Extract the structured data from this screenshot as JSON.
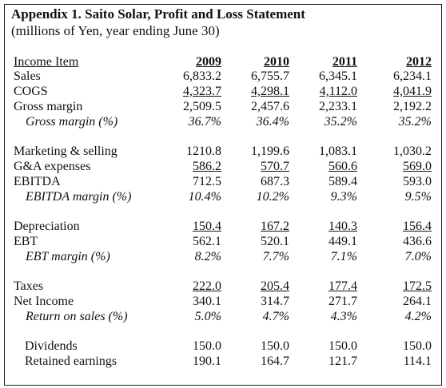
{
  "header": {
    "title": "Appendix 1. Saito Solar, Profit and Loss Statement",
    "subtitle": "(millions of Yen, year ending June 30)"
  },
  "table": {
    "columns": [
      "Income Item",
      "2009",
      "2010",
      "2011",
      "2012"
    ],
    "rows": [
      [
        "Sales",
        "6,833.2",
        "6,755.7",
        "6,345.1",
        "6,234.1"
      ],
      [
        "COGS",
        "4,323.7",
        "4,298.1",
        "4,112.0",
        "4,041.9"
      ],
      [
        "Gross margin",
        "2,509.5",
        "2,457.6",
        "2,233.1",
        "2,192.2"
      ],
      [
        "Gross margin (%)",
        "36.7%",
        "36.4%",
        "35.2%",
        "35.2%"
      ],
      [
        "Marketing & selling",
        "1210.8",
        "1,199.6",
        "1,083.1",
        "1,030.2"
      ],
      [
        "G&A expenses",
        "586.2",
        "570.7",
        "560.6",
        "569.0"
      ],
      [
        "EBITDA",
        "712.5",
        "687.3",
        "589.4",
        "593.0"
      ],
      [
        "EBITDA margin (%)",
        "10.4%",
        "10.2%",
        "9.3%",
        "9.5%"
      ],
      [
        "Depreciation",
        "150.4",
        "167.2",
        "140.3",
        "156.4"
      ],
      [
        "EBT",
        "562.1",
        "520.1",
        "449.1",
        "436.6"
      ],
      [
        "EBT margin (%)",
        "8.2%",
        "7.7%",
        "7.1%",
        "7.0%"
      ],
      [
        "Taxes",
        "222.0",
        "205.4",
        "177.4",
        "172.5"
      ],
      [
        "Net Income",
        "340.1",
        "314.7",
        "271.7",
        "264.1"
      ],
      [
        "Return on sales (%)",
        "5.0%",
        "4.7%",
        "4.3%",
        "4.2%"
      ],
      [
        "Dividends",
        "150.0",
        "150.0",
        "150.0",
        "150.0"
      ],
      [
        "Retained earnings",
        "190.1",
        "164.7",
        "121.7",
        "114.1"
      ]
    ]
  }
}
